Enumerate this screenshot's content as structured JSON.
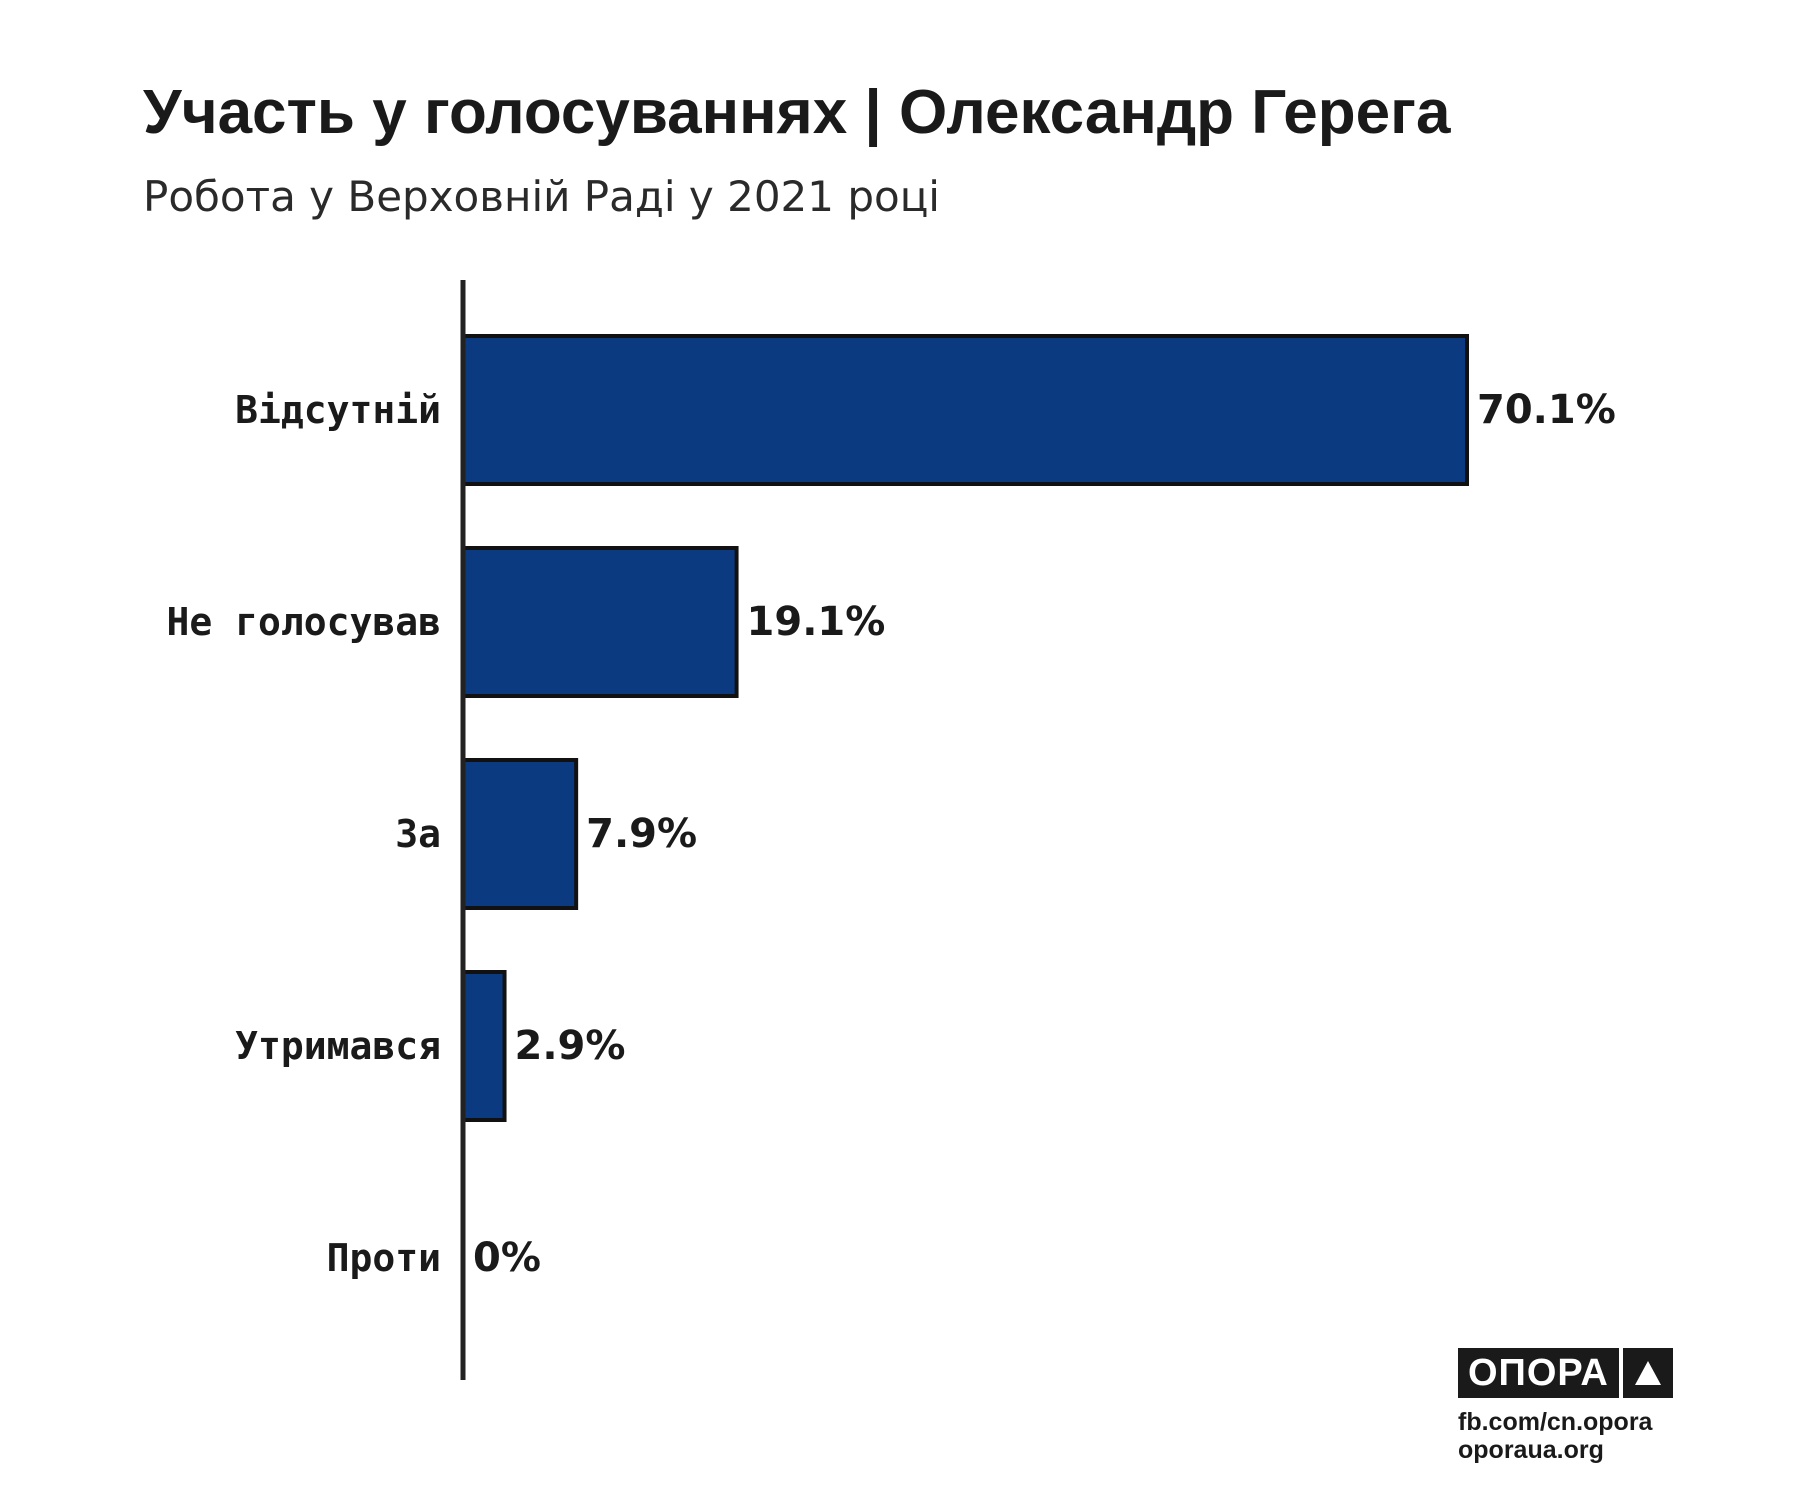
{
  "header": {
    "title": "Участь у голосуваннях | Олександр Герега",
    "subtitle": "Робота у Верховній Раді у 2021 році"
  },
  "chart_data": {
    "type": "bar",
    "orientation": "horizontal",
    "title": "Участь у голосуваннях | Олександр Герега",
    "subtitle": "Робота у Верховній Раді у 2021 році",
    "categories": [
      "Відсутній",
      "Не голосував",
      "За",
      "Утримався",
      "Проти"
    ],
    "values": [
      70.1,
      19.1,
      7.9,
      2.9,
      0
    ],
    "value_labels": [
      "70.1%",
      "19.1%",
      "7.9%",
      "2.9%",
      "0%"
    ],
    "unit": "%",
    "xlim": [
      0,
      100
    ],
    "grid": false,
    "legend": "none",
    "colors": {
      "bar_fill": "#0c3a80",
      "bar_stroke": "#111111",
      "axis": "#222222",
      "text": "#1a1a1a"
    }
  },
  "branding": {
    "logo_text": "ОПОРА",
    "logo_icon": "triangle-logo-icon",
    "facebook": "fb.com/cn.opora",
    "website": "oporaua.org"
  }
}
